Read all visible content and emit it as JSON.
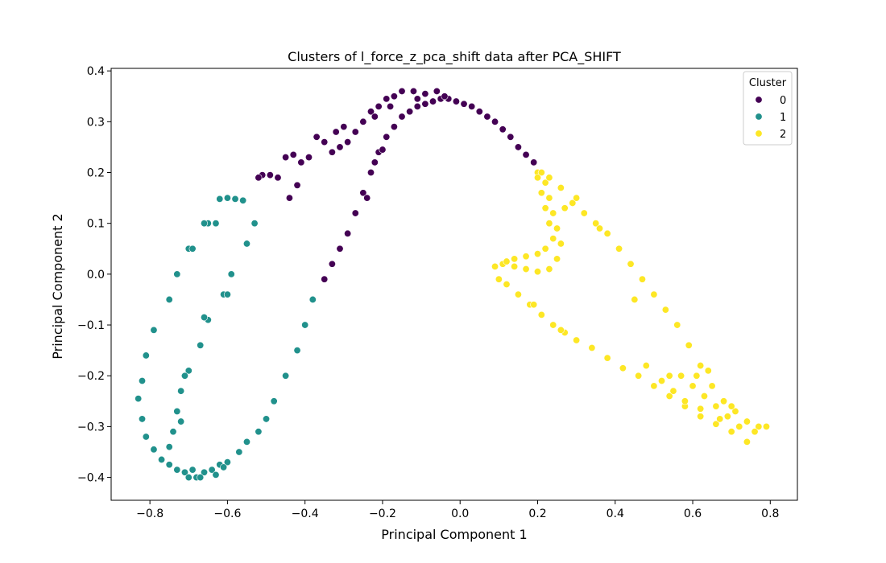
{
  "chart_data": {
    "type": "scatter",
    "title": "Clusters of l_force_z_pca_shift data after PCA_SHIFT",
    "xlabel": "Principal Component 1",
    "ylabel": "Principal Component 2",
    "xlim": [
      -0.9,
      0.87
    ],
    "ylim": [
      -0.445,
      0.405
    ],
    "x_ticks": [
      "−0.8",
      "−0.6",
      "−0.4",
      "−0.2",
      "0.0",
      "0.2",
      "0.4",
      "0.6",
      "0.8"
    ],
    "y_ticks": [
      "−0.4",
      "−0.3",
      "−0.2",
      "−0.1",
      "0.0",
      "0.1",
      "0.2",
      "0.3",
      "0.4"
    ],
    "grid": false,
    "legend": {
      "title": "Cluster",
      "position": "top-right"
    },
    "series": [
      {
        "name": "0",
        "color": "#440154",
        "points": [
          [
            0.19,
            0.22
          ],
          [
            0.17,
            0.235
          ],
          [
            0.15,
            0.25
          ],
          [
            0.13,
            0.27
          ],
          [
            0.11,
            0.285
          ],
          [
            0.09,
            0.3
          ],
          [
            0.07,
            0.31
          ],
          [
            0.05,
            0.32
          ],
          [
            0.03,
            0.33
          ],
          [
            0.01,
            0.335
          ],
          [
            -0.01,
            0.34
          ],
          [
            -0.03,
            0.345
          ],
          [
            -0.05,
            0.345
          ],
          [
            -0.07,
            0.34
          ],
          [
            -0.09,
            0.335
          ],
          [
            -0.11,
            0.33
          ],
          [
            -0.13,
            0.32
          ],
          [
            -0.15,
            0.31
          ],
          [
            -0.17,
            0.29
          ],
          [
            -0.19,
            0.27
          ],
          [
            -0.21,
            0.24
          ],
          [
            -0.23,
            0.2
          ],
          [
            -0.25,
            0.16
          ],
          [
            -0.27,
            0.12
          ],
          [
            -0.29,
            0.08
          ],
          [
            -0.31,
            0.05
          ],
          [
            -0.33,
            0.02
          ],
          [
            -0.35,
            -0.01
          ],
          [
            -0.04,
            0.35
          ],
          [
            -0.06,
            0.36
          ],
          [
            -0.09,
            0.355
          ],
          [
            -0.12,
            0.36
          ],
          [
            -0.15,
            0.36
          ],
          [
            -0.17,
            0.35
          ],
          [
            -0.19,
            0.345
          ],
          [
            -0.21,
            0.33
          ],
          [
            -0.23,
            0.32
          ],
          [
            -0.25,
            0.3
          ],
          [
            -0.27,
            0.28
          ],
          [
            -0.29,
            0.26
          ],
          [
            -0.31,
            0.25
          ],
          [
            -0.33,
            0.24
          ],
          [
            -0.35,
            0.26
          ],
          [
            -0.37,
            0.27
          ],
          [
            -0.39,
            0.23
          ],
          [
            -0.41,
            0.22
          ],
          [
            -0.43,
            0.235
          ],
          [
            -0.45,
            0.23
          ],
          [
            -0.47,
            0.19
          ],
          [
            -0.49,
            0.195
          ],
          [
            -0.51,
            0.195
          ],
          [
            -0.52,
            0.19
          ],
          [
            -0.3,
            0.29
          ],
          [
            -0.32,
            0.28
          ],
          [
            -0.22,
            0.31
          ],
          [
            -0.18,
            0.33
          ],
          [
            -0.11,
            0.345
          ],
          [
            -0.44,
            0.15
          ],
          [
            -0.42,
            0.175
          ],
          [
            -0.2,
            0.245
          ],
          [
            -0.22,
            0.22
          ],
          [
            -0.24,
            0.15
          ]
        ]
      },
      {
        "name": "1",
        "color": "#21918c",
        "points": [
          [
            -0.6,
            0.15
          ],
          [
            -0.58,
            0.148
          ],
          [
            -0.56,
            0.145
          ],
          [
            -0.62,
            0.148
          ],
          [
            -0.65,
            0.1
          ],
          [
            -0.63,
            0.1
          ],
          [
            -0.66,
            0.1
          ],
          [
            -0.7,
            0.05
          ],
          [
            -0.69,
            0.05
          ],
          [
            -0.73,
            0.0
          ],
          [
            -0.75,
            -0.05
          ],
          [
            -0.79,
            -0.11
          ],
          [
            -0.81,
            -0.16
          ],
          [
            -0.82,
            -0.21
          ],
          [
            -0.83,
            -0.245
          ],
          [
            -0.82,
            -0.285
          ],
          [
            -0.81,
            -0.32
          ],
          [
            -0.79,
            -0.345
          ],
          [
            -0.77,
            -0.365
          ],
          [
            -0.75,
            -0.375
          ],
          [
            -0.73,
            -0.385
          ],
          [
            -0.71,
            -0.39
          ],
          [
            -0.7,
            -0.4
          ],
          [
            -0.68,
            -0.4
          ],
          [
            -0.66,
            -0.39
          ],
          [
            -0.64,
            -0.385
          ],
          [
            -0.62,
            -0.375
          ],
          [
            -0.6,
            -0.37
          ],
          [
            -0.57,
            -0.35
          ],
          [
            -0.55,
            -0.33
          ],
          [
            -0.52,
            -0.31
          ],
          [
            -0.5,
            -0.285
          ],
          [
            -0.48,
            -0.25
          ],
          [
            -0.45,
            -0.2
          ],
          [
            -0.42,
            -0.15
          ],
          [
            -0.4,
            -0.1
          ],
          [
            -0.38,
            -0.05
          ],
          [
            -0.59,
            0.0
          ],
          [
            -0.61,
            -0.04
          ],
          [
            -0.65,
            -0.09
          ],
          [
            -0.67,
            -0.14
          ],
          [
            -0.7,
            -0.19
          ],
          [
            -0.72,
            -0.23
          ],
          [
            -0.73,
            -0.27
          ],
          [
            -0.74,
            -0.31
          ],
          [
            -0.75,
            -0.34
          ],
          [
            -0.72,
            -0.29
          ],
          [
            -0.71,
            -0.2
          ],
          [
            -0.66,
            -0.085
          ],
          [
            -0.6,
            -0.04
          ],
          [
            -0.55,
            0.06
          ],
          [
            -0.53,
            0.1
          ],
          [
            -0.57,
            -0.35
          ],
          [
            -0.61,
            -0.38
          ],
          [
            -0.67,
            -0.4
          ],
          [
            -0.69,
            -0.385
          ],
          [
            -0.63,
            -0.395
          ]
        ]
      },
      {
        "name": "2",
        "color": "#fde725",
        "points": [
          [
            0.2,
            0.2
          ],
          [
            0.22,
            0.18
          ],
          [
            0.23,
            0.15
          ],
          [
            0.24,
            0.12
          ],
          [
            0.25,
            0.09
          ],
          [
            0.26,
            0.06
          ],
          [
            0.25,
            0.03
          ],
          [
            0.23,
            0.01
          ],
          [
            0.2,
            0.005
          ],
          [
            0.17,
            0.01
          ],
          [
            0.14,
            0.015
          ],
          [
            0.11,
            0.02
          ],
          [
            0.09,
            0.015
          ],
          [
            0.1,
            -0.01
          ],
          [
            0.12,
            -0.02
          ],
          [
            0.15,
            -0.04
          ],
          [
            0.18,
            -0.06
          ],
          [
            0.21,
            -0.08
          ],
          [
            0.24,
            -0.1
          ],
          [
            0.27,
            -0.115
          ],
          [
            0.3,
            -0.13
          ],
          [
            0.34,
            -0.145
          ],
          [
            0.38,
            -0.165
          ],
          [
            0.42,
            -0.185
          ],
          [
            0.46,
            -0.2
          ],
          [
            0.5,
            -0.22
          ],
          [
            0.54,
            -0.24
          ],
          [
            0.58,
            -0.26
          ],
          [
            0.62,
            -0.28
          ],
          [
            0.66,
            -0.295
          ],
          [
            0.7,
            -0.31
          ],
          [
            0.74,
            -0.33
          ],
          [
            0.21,
            0.2
          ],
          [
            0.23,
            0.19
          ],
          [
            0.26,
            0.17
          ],
          [
            0.29,
            0.14
          ],
          [
            0.32,
            0.12
          ],
          [
            0.35,
            0.1
          ],
          [
            0.38,
            0.08
          ],
          [
            0.41,
            0.05
          ],
          [
            0.44,
            0.02
          ],
          [
            0.47,
            -0.01
          ],
          [
            0.5,
            -0.04
          ],
          [
            0.53,
            -0.07
          ],
          [
            0.56,
            -0.1
          ],
          [
            0.59,
            -0.14
          ],
          [
            0.62,
            -0.18
          ],
          [
            0.65,
            -0.22
          ],
          [
            0.68,
            -0.25
          ],
          [
            0.71,
            -0.27
          ],
          [
            0.74,
            -0.29
          ],
          [
            0.77,
            -0.3
          ],
          [
            0.79,
            -0.3
          ],
          [
            0.76,
            -0.31
          ],
          [
            0.72,
            -0.3
          ],
          [
            0.69,
            -0.28
          ],
          [
            0.66,
            -0.26
          ],
          [
            0.63,
            -0.24
          ],
          [
            0.6,
            -0.22
          ],
          [
            0.57,
            -0.2
          ],
          [
            0.54,
            -0.2
          ],
          [
            0.52,
            -0.21
          ],
          [
            0.55,
            -0.23
          ],
          [
            0.58,
            -0.25
          ],
          [
            0.62,
            -0.265
          ],
          [
            0.67,
            -0.285
          ],
          [
            0.2,
            0.19
          ],
          [
            0.21,
            0.16
          ],
          [
            0.22,
            0.13
          ],
          [
            0.23,
            0.1
          ],
          [
            0.24,
            0.07
          ],
          [
            0.22,
            0.05
          ],
          [
            0.2,
            0.04
          ],
          [
            0.17,
            0.035
          ],
          [
            0.14,
            0.03
          ],
          [
            0.12,
            0.025
          ],
          [
            0.27,
            0.13
          ],
          [
            0.3,
            0.15
          ],
          [
            0.61,
            -0.2
          ],
          [
            0.64,
            -0.19
          ],
          [
            0.7,
            -0.26
          ],
          [
            0.48,
            -0.18
          ],
          [
            0.45,
            -0.05
          ],
          [
            0.36,
            0.09
          ],
          [
            0.19,
            -0.06
          ],
          [
            0.26,
            -0.11
          ]
        ]
      }
    ]
  }
}
